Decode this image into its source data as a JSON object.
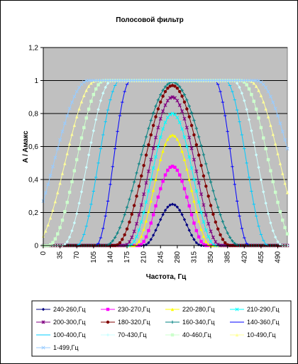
{
  "chart_data": {
    "type": "line",
    "title": "Полосовой фильтр",
    "xlabel": "Частота, Гц",
    "ylabel": "A / Aмакс",
    "ylim": [
      0,
      1.2
    ],
    "xlim": [
      0,
      510
    ],
    "x_ticks": [
      "0",
      "35",
      "70",
      "105",
      "140",
      "175",
      "210",
      "245",
      "280",
      "315",
      "350",
      "385",
      "420",
      "455",
      "490"
    ],
    "y_ticks": [
      "0",
      "0,2",
      "0,4",
      "0,6",
      "0,8",
      "1",
      "1,2"
    ],
    "grid": true,
    "legend_position": "bottom",
    "center_frequency": 270,
    "series": [
      {
        "name": "240-260,Гц",
        "color": "#000080",
        "marker": "diamond",
        "peak": 0.25,
        "half_width_at_zero": 60
      },
      {
        "name": "230-270,Гц",
        "color": "#FF00FF",
        "marker": "square",
        "peak": 0.48,
        "half_width_at_zero": 70
      },
      {
        "name": "220-280,Гц",
        "color": "#FFFF00",
        "marker": "triangle",
        "peak": 0.67,
        "half_width_at_zero": 80
      },
      {
        "name": "210-290,Гц",
        "color": "#00FFFF",
        "marker": "x",
        "peak": 0.8,
        "half_width_at_zero": 90
      },
      {
        "name": "200-300,Гц",
        "color": "#800080",
        "marker": "star",
        "peak": 0.9,
        "half_width_at_zero": 100
      },
      {
        "name": "180-320,Гц",
        "color": "#800000",
        "marker": "circle",
        "peak": 0.97,
        "half_width_at_zero": 120
      },
      {
        "name": "160-340,Гц",
        "color": "#008080",
        "marker": "plus",
        "peak": 0.99,
        "half_width_at_zero": 140
      },
      {
        "name": "140-360,Гц",
        "color": "#0000FF",
        "marker": "dash",
        "peak": 1.0,
        "half_width_at_zero": 160
      },
      {
        "name": "100-400,Гц",
        "color": "#00CCFF",
        "marker": "dash",
        "peak": 1.0,
        "half_width_at_zero": 200
      },
      {
        "name": "70-430,Гц",
        "color": "#CCFFFF",
        "marker": "diamond",
        "peak": 1.0,
        "half_width_at_zero": 230
      },
      {
        "name": "40-460,Гц",
        "color": "#CCFFCC",
        "marker": "square",
        "peak": 1.0,
        "half_width_at_zero": 260
      },
      {
        "name": "10-490,Гц",
        "color": "#FFFF99",
        "marker": "triangle",
        "peak": 1.0,
        "half_width_at_zero": 290
      },
      {
        "name": "1-499,Гц",
        "color": "#99CCFF",
        "marker": "x",
        "peak": 1.0,
        "half_width_at_zero": 320
      }
    ]
  }
}
